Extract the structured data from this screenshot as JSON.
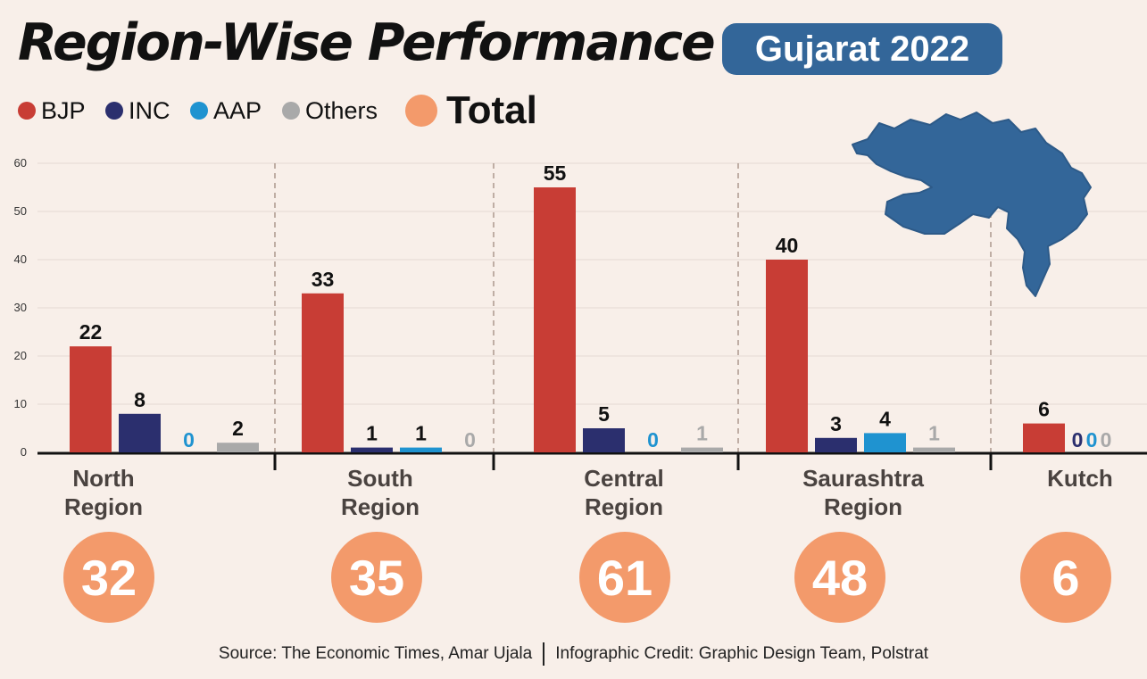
{
  "title": "Region-Wise Performance",
  "badge": "Gujarat 2022",
  "legend": [
    {
      "label": "BJP",
      "color": "#c83d35"
    },
    {
      "label": "INC",
      "color": "#2b2f6e"
    },
    {
      "label": "AAP",
      "color": "#1f93d0"
    },
    {
      "label": "Others",
      "color": "#a9a9a9"
    }
  ],
  "legend_total": {
    "label": "Total",
    "color": "#f39a6b"
  },
  "map_icon": "gujarat-map",
  "chart_data": {
    "type": "bar",
    "title": "Region-Wise Performance",
    "subtitle": "Gujarat 2022",
    "xlabel": "",
    "ylabel": "",
    "ylim": [
      0,
      60
    ],
    "yticks": [
      0,
      10,
      20,
      30,
      40,
      50,
      60
    ],
    "grid": true,
    "legend_position": "top-left",
    "categories": [
      [
        "North",
        "Region"
      ],
      [
        "South",
        "Region"
      ],
      [
        "Central",
        "Region"
      ],
      [
        "Saurashtra",
        "Region"
      ],
      [
        "Kutch"
      ]
    ],
    "series": [
      {
        "name": "BJP",
        "color": "#c83d35",
        "values": [
          22,
          33,
          55,
          40,
          6
        ]
      },
      {
        "name": "INC",
        "color": "#2b2f6e",
        "values": [
          8,
          1,
          5,
          3,
          0
        ]
      },
      {
        "name": "AAP",
        "color": "#1f93d0",
        "values": [
          0,
          1,
          0,
          4,
          0
        ]
      },
      {
        "name": "Others",
        "color": "#a9a9a9",
        "values": [
          2,
          0,
          1,
          1,
          0
        ]
      }
    ],
    "totals": [
      32,
      35,
      61,
      48,
      6
    ],
    "total_color": "#f39a6b"
  },
  "footer": {
    "source": "Source: The Economic Times, Amar Ujala",
    "credit": "Infographic Credit: Graphic Design Team, Polstrat"
  }
}
